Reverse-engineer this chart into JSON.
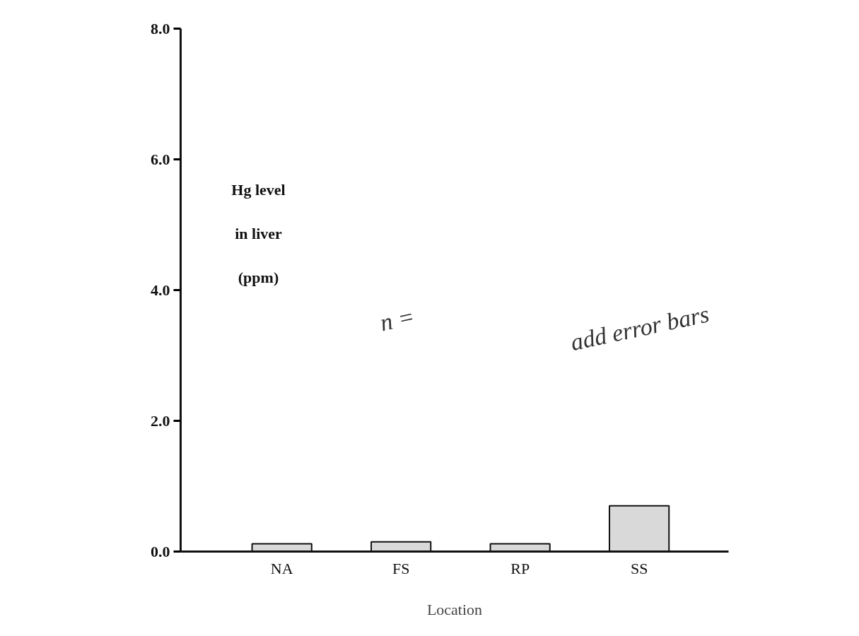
{
  "chart_data": {
    "type": "bar",
    "xlabel": "Location",
    "ylabel": "Hg level\nin liver\n(ppm)",
    "categories": [
      "NA",
      "FS",
      "RP",
      "SS"
    ],
    "values": [
      0.12,
      0.15,
      0.12,
      0.7
    ],
    "color": "#d9d9d9",
    "ylim": [
      0,
      8
    ],
    "yticks": [
      {
        "value": 0,
        "label": "0.0"
      },
      {
        "value": 2,
        "label": "2.0"
      },
      {
        "value": 4,
        "label": "4.0"
      },
      {
        "value": 6,
        "label": "6.0"
      },
      {
        "value": 8,
        "label": "8.0"
      }
    ],
    "grid": false,
    "annotations": [
      "n =",
      "add error bars"
    ]
  }
}
